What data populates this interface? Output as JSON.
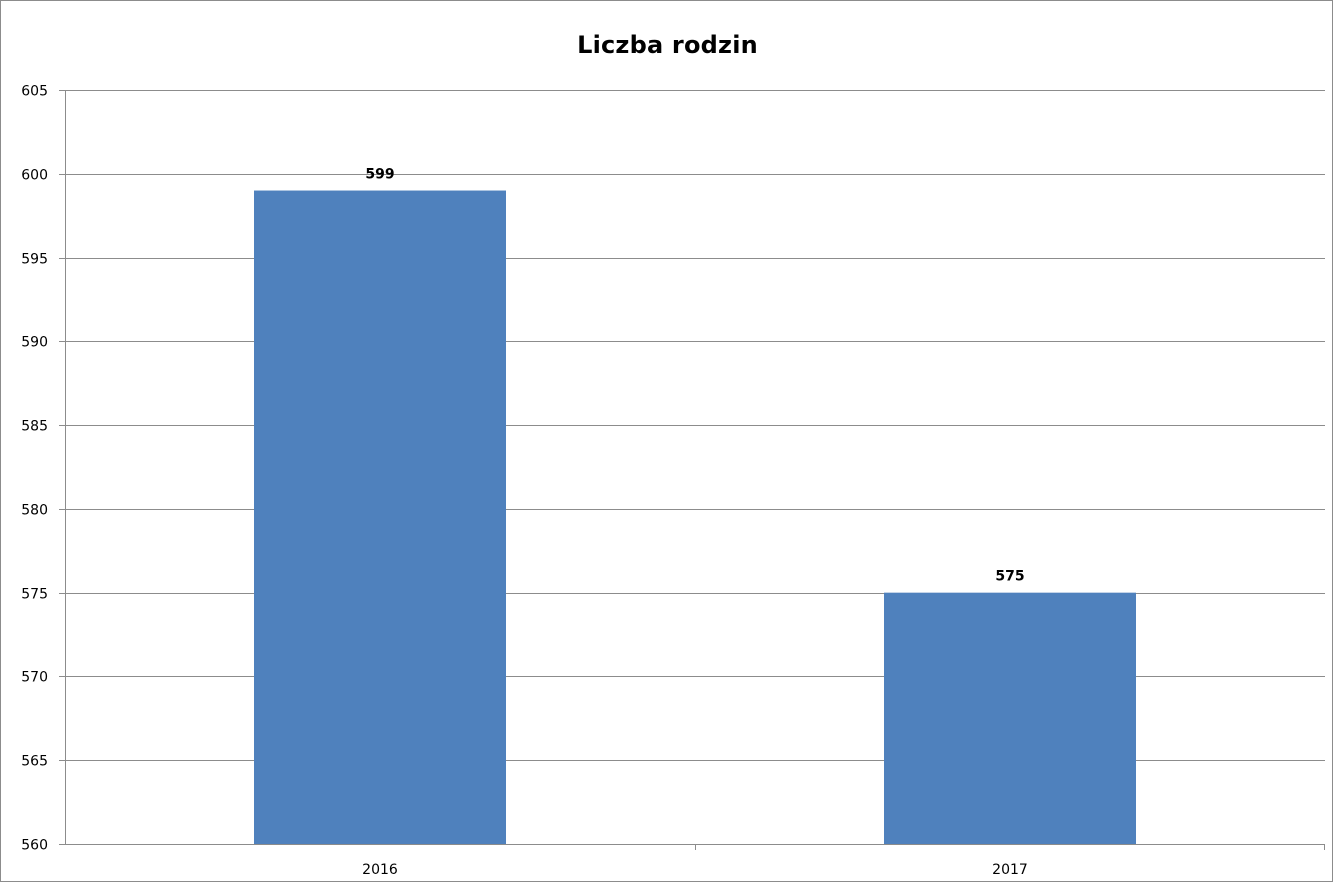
{
  "chart_data": {
    "type": "bar",
    "title": "Liczba rodzin",
    "categories": [
      "2016",
      "2017"
    ],
    "values": [
      599,
      575
    ],
    "data_labels": [
      "599",
      "575"
    ],
    "xlabel": "",
    "ylabel": "",
    "ylim": [
      560,
      605
    ],
    "yticks": [
      560,
      565,
      570,
      575,
      580,
      585,
      590,
      595,
      600,
      605
    ],
    "grid": true,
    "legend": "none",
    "colors": {
      "bar": "#4f81bd",
      "grid": "#8c8c8c",
      "axis": "#8c8c8c"
    }
  }
}
